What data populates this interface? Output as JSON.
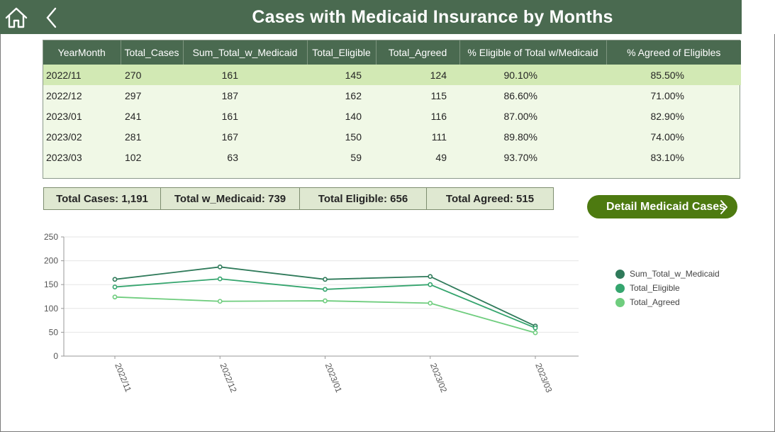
{
  "header": {
    "title": "Cases with Medicaid Insurance by Months"
  },
  "icons": {
    "home": "home-icon",
    "back": "chevron-left-icon",
    "detail": "chevron-right-icon"
  },
  "table": {
    "columns": [
      "YearMonth",
      "Total_Cases",
      "Sum_Total_w_Medicaid",
      "Total_Eligible",
      "Total_Agreed",
      "% Eligible of Total w/Medicaid",
      "% Agreed of Eligibles"
    ],
    "rows": [
      [
        "2022/11",
        "270",
        "161",
        "145",
        "124",
        "90.10%",
        "85.50%"
      ],
      [
        "2022/12",
        "297",
        "187",
        "162",
        "115",
        "86.60%",
        "71.00%"
      ],
      [
        "2023/01",
        "241",
        "161",
        "140",
        "116",
        "87.00%",
        "82.90%"
      ],
      [
        "2023/02",
        "281",
        "167",
        "150",
        "111",
        "89.80%",
        "74.00%"
      ],
      [
        "2023/03",
        "102",
        "63",
        "59",
        "49",
        "93.70%",
        "83.10%"
      ]
    ],
    "selected_row": 0
  },
  "kpis": [
    "Total Cases: 1,191",
    "Total w_Medicaid: 739",
    "Total Eligible: 656",
    "Total Agreed: 515"
  ],
  "detail_button": {
    "label": "Detail Medicaid Cases"
  },
  "colors": {
    "header_bg": "#4a6a50",
    "button_bg": "#4d7a10",
    "selected_row": "#d2e9b4",
    "series": [
      "#2f7a5a",
      "#35a56e",
      "#6fcd7e"
    ]
  },
  "chart_data": {
    "type": "line",
    "x": [
      "2022/11",
      "2022/12",
      "2023/01",
      "2023/02",
      "2023/03"
    ],
    "series": [
      {
        "name": "Sum_Total_w_Medicaid",
        "values": [
          161,
          187,
          161,
          167,
          63
        ]
      },
      {
        "name": "Total_Eligible",
        "values": [
          145,
          162,
          140,
          150,
          59
        ]
      },
      {
        "name": "Total_Agreed",
        "values": [
          124,
          115,
          116,
          111,
          49
        ]
      }
    ],
    "yticks": [
      0,
      50,
      100,
      150,
      200,
      250
    ],
    "ylim": [
      0,
      250
    ],
    "grid": true,
    "legend_position": "right"
  }
}
